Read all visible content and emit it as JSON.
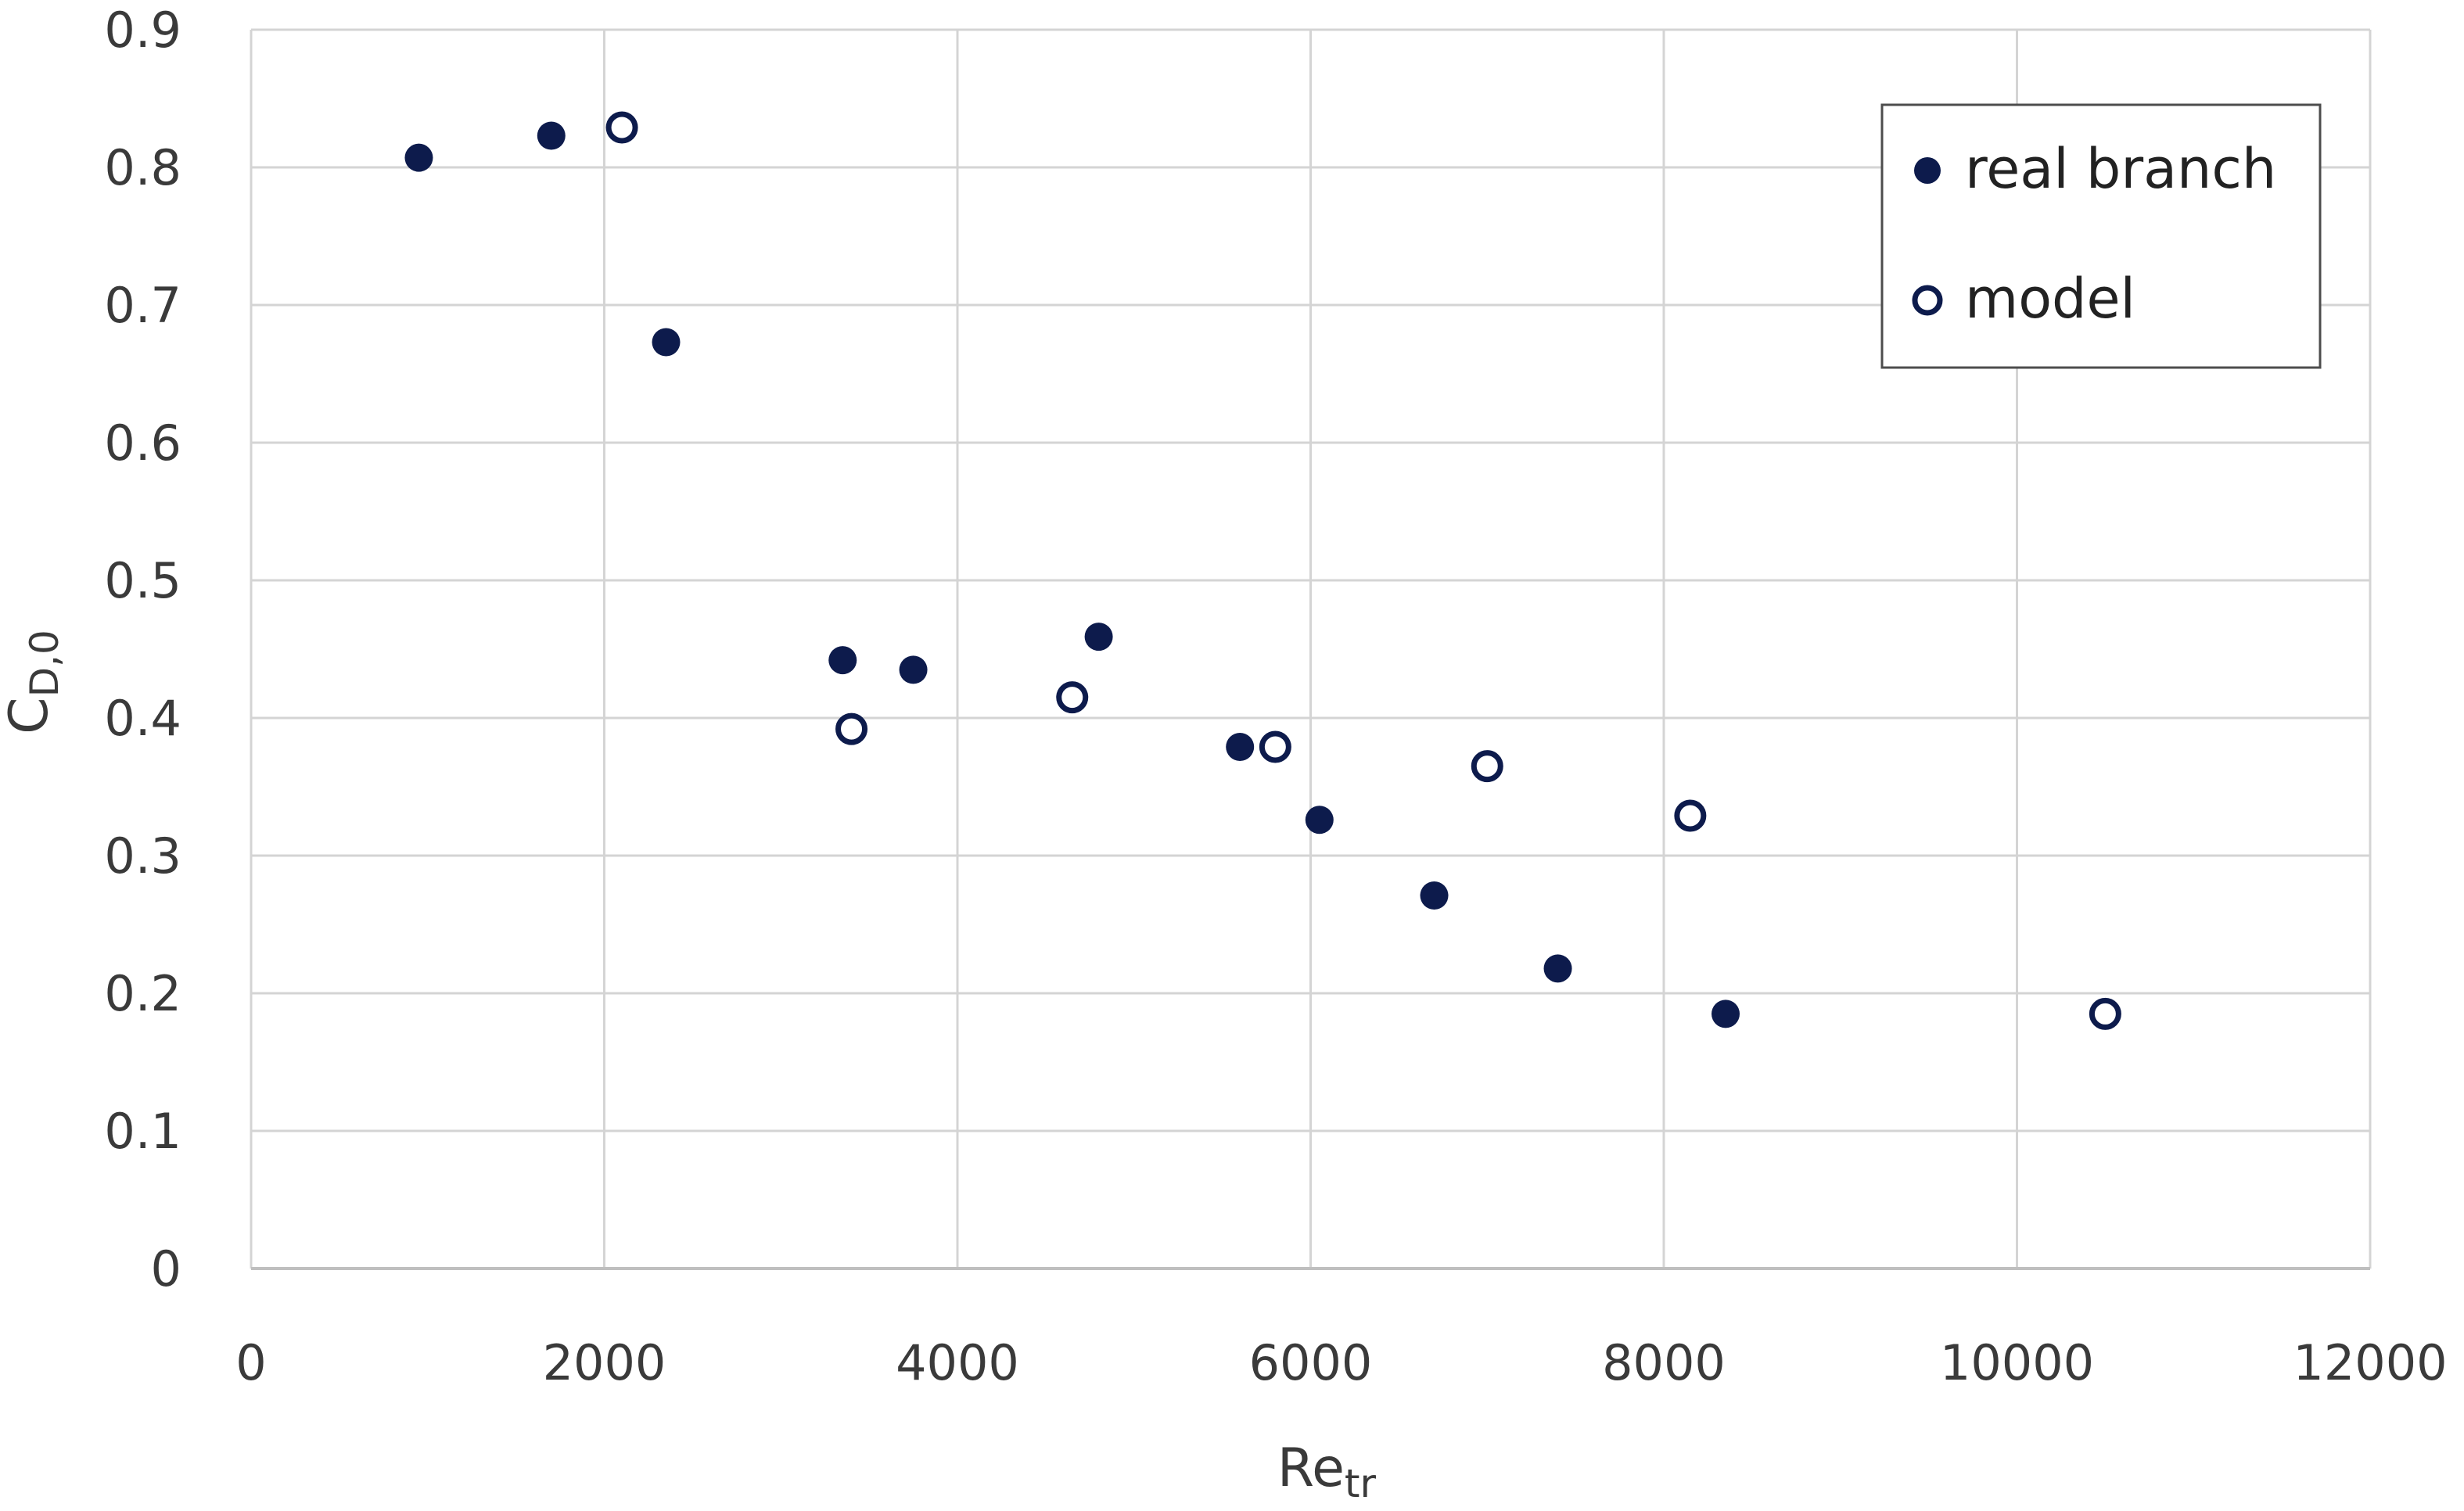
{
  "chart_data": {
    "type": "scatter",
    "xlabel": "Re",
    "xlabel_sub": "tr",
    "ylabel": "C",
    "ylabel_sub": "D,0",
    "xlim": [
      0,
      12000
    ],
    "ylim": [
      0,
      0.9
    ],
    "x_ticks": [
      "0",
      "2000",
      "4000",
      "6000",
      "8000",
      "10000",
      "12000"
    ],
    "y_ticks": [
      "0",
      "0.1",
      "0.2",
      "0.3",
      "0.4",
      "0.5",
      "0.6",
      "0.7",
      "0.8",
      "0.9"
    ],
    "grid": true,
    "legend_position": "top-right",
    "series": [
      {
        "name": "real branch",
        "marker": "filled-circle",
        "color": "#0d1b4c",
        "points": [
          [
            950,
            0.807
          ],
          [
            1700,
            0.823
          ],
          [
            2350,
            0.673
          ],
          [
            3350,
            0.442
          ],
          [
            3750,
            0.435
          ],
          [
            4800,
            0.459
          ],
          [
            5600,
            0.379
          ],
          [
            6050,
            0.326
          ],
          [
            6700,
            0.271
          ],
          [
            7400,
            0.218
          ],
          [
            8350,
            0.185
          ]
        ]
      },
      {
        "name": "model",
        "marker": "open-circle",
        "color": "#0d1b4c",
        "points": [
          [
            2100,
            0.829
          ],
          [
            3400,
            0.392
          ],
          [
            4650,
            0.415
          ],
          [
            5800,
            0.379
          ],
          [
            7000,
            0.365
          ],
          [
            8150,
            0.329
          ],
          [
            10500,
            0.185
          ]
        ]
      }
    ]
  }
}
